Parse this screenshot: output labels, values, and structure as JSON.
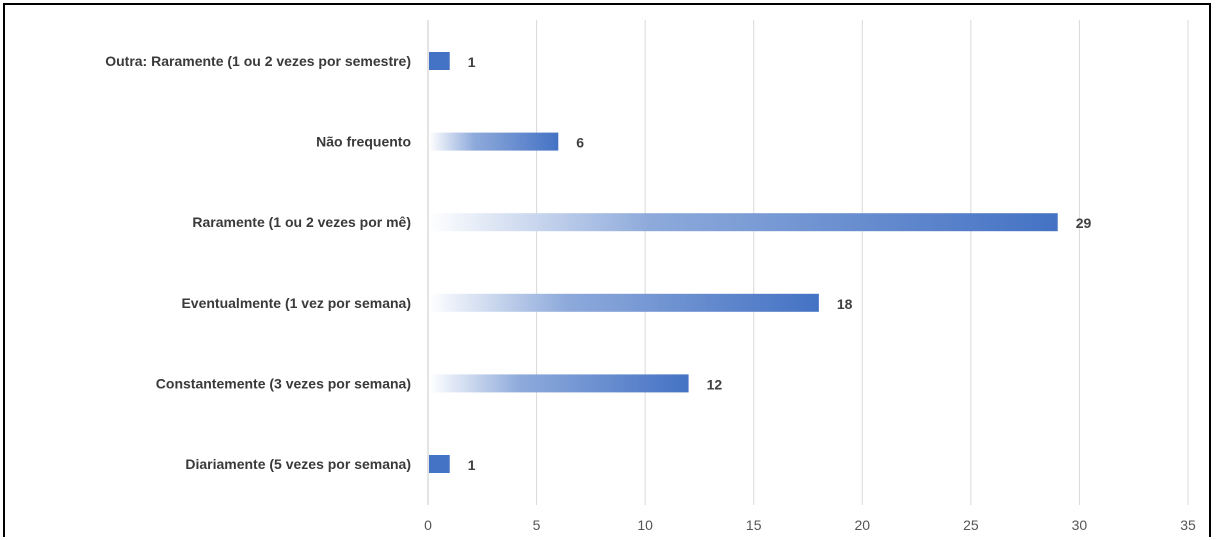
{
  "chart_data": {
    "type": "bar",
    "orientation": "horizontal",
    "categories": [
      "Outra: Raramente (1 ou 2 vezes por semestre)",
      "Não frequento",
      "Raramente (1 ou 2 vezes por mê)",
      "Eventualmente (1 vez por semana)",
      "Constantemente (3 vezes por semana)",
      "Diariamente (5 vezes por semana)"
    ],
    "values": [
      1,
      6,
      29,
      18,
      12,
      1
    ],
    "data_labels": [
      "1",
      "6",
      "29",
      "18",
      "12",
      "1"
    ],
    "x_ticks": [
      "0",
      "5",
      "10",
      "15",
      "20",
      "25",
      "30",
      "35"
    ],
    "xlim": [
      0,
      35
    ],
    "grid": "vertical",
    "legend": "none",
    "bar_color": "#4472c4",
    "bar_fill": "gradient-white-to-blue",
    "title": "",
    "xlabel": "",
    "ylabel": ""
  }
}
